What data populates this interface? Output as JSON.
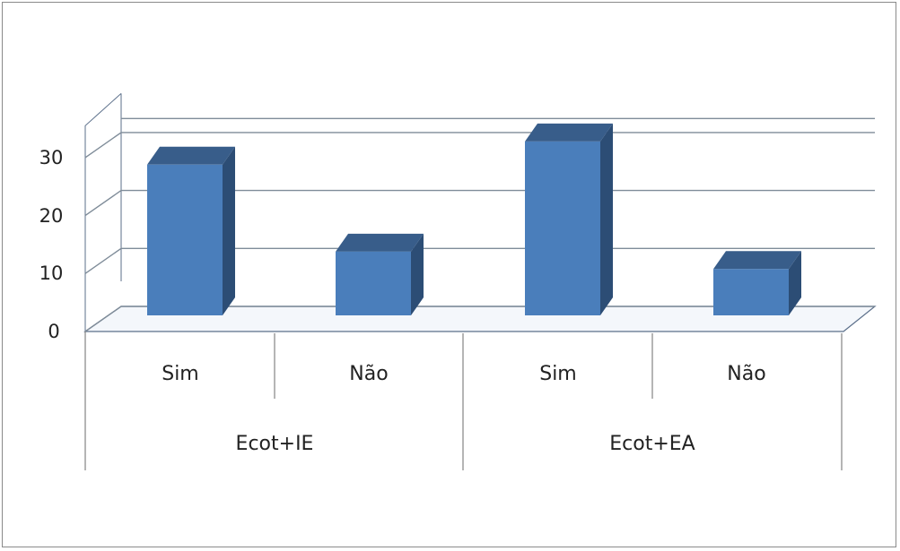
{
  "chart_data": {
    "type": "bar",
    "style": "3d-clustered-column",
    "groups": [
      {
        "label": "Ecot+IE",
        "categories": [
          "Sim",
          "Não"
        ],
        "values": [
          26,
          11
        ]
      },
      {
        "label": "Ecot+EA",
        "categories": [
          "Sim",
          "Não"
        ],
        "values": [
          30,
          8
        ]
      }
    ],
    "y_ticks": [
      "0",
      "10",
      "20",
      "30"
    ],
    "ylim": [
      0,
      30
    ],
    "grid": true,
    "legend": "none",
    "colors": {
      "bar_front": "#4a7ebb",
      "bar_top": "#385d8a",
      "bar_side": "#2c4d75",
      "gridline": "#7f8c99",
      "axis_line": "#5b6f8a"
    }
  }
}
